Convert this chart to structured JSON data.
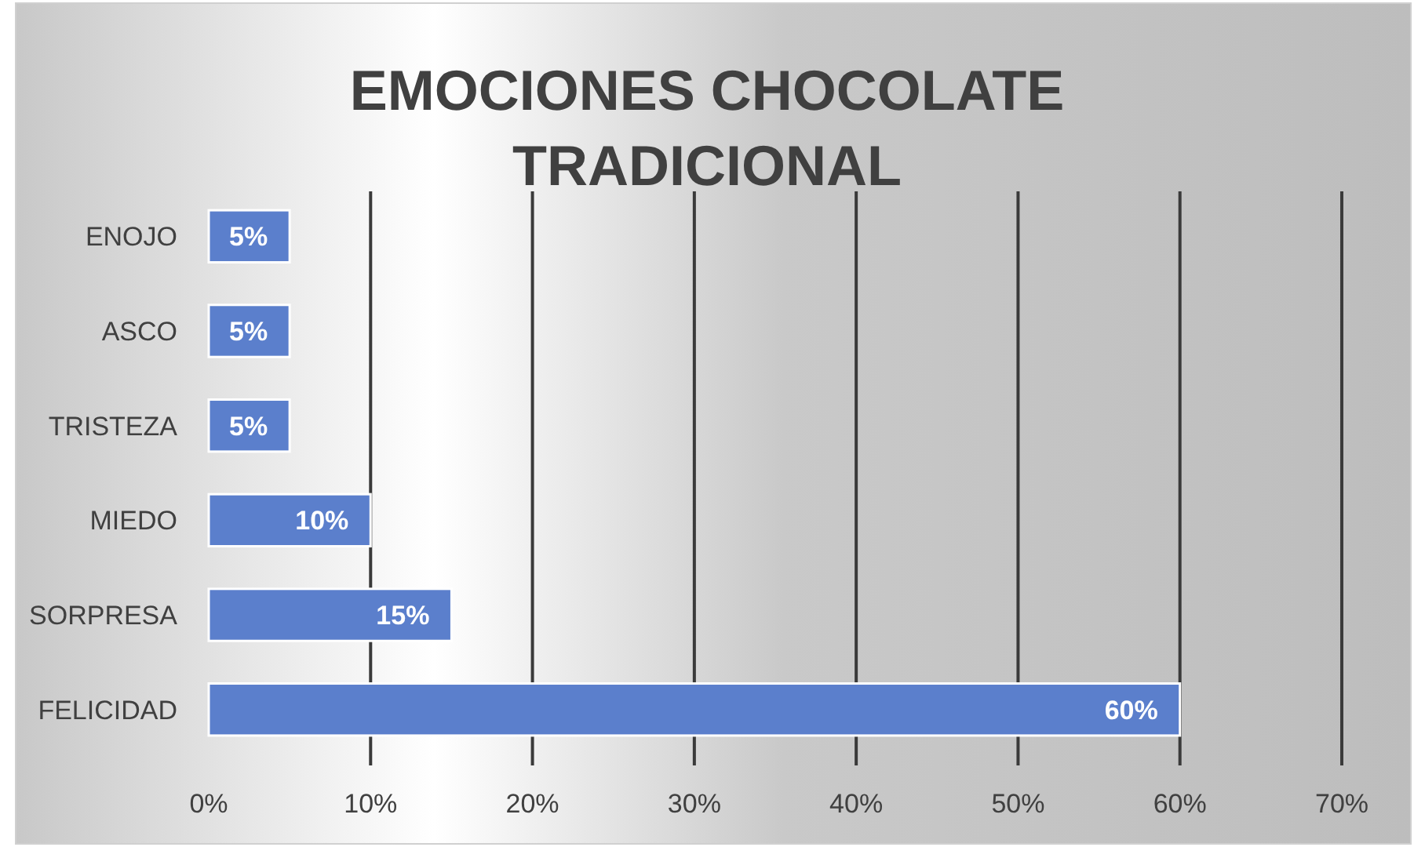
{
  "chart_data": {
    "type": "bar",
    "orientation": "horizontal",
    "title": "EMOCIONES CHOCOLATE TRADICIONAL",
    "categories": [
      "ENOJO",
      "ASCO",
      "TRISTEZA",
      "MIEDO",
      "SORPRESA",
      "FELICIDAD"
    ],
    "values": [
      5,
      5,
      5,
      10,
      15,
      60
    ],
    "value_labels": [
      "5%",
      "5%",
      "5%",
      "10%",
      "15%",
      "60%"
    ],
    "color": "#5b7fcc",
    "xlim": [
      0,
      70
    ],
    "xticks": [
      {
        "value": 0,
        "label": "0%"
      },
      {
        "value": 10,
        "label": "10%"
      },
      {
        "value": 20,
        "label": "20%"
      },
      {
        "value": 30,
        "label": "30%"
      },
      {
        "value": 40,
        "label": "40%"
      },
      {
        "value": 50,
        "label": "50%"
      },
      {
        "value": 60,
        "label": "60%"
      },
      {
        "value": 70,
        "label": "70%"
      }
    ],
    "grid": "x"
  }
}
